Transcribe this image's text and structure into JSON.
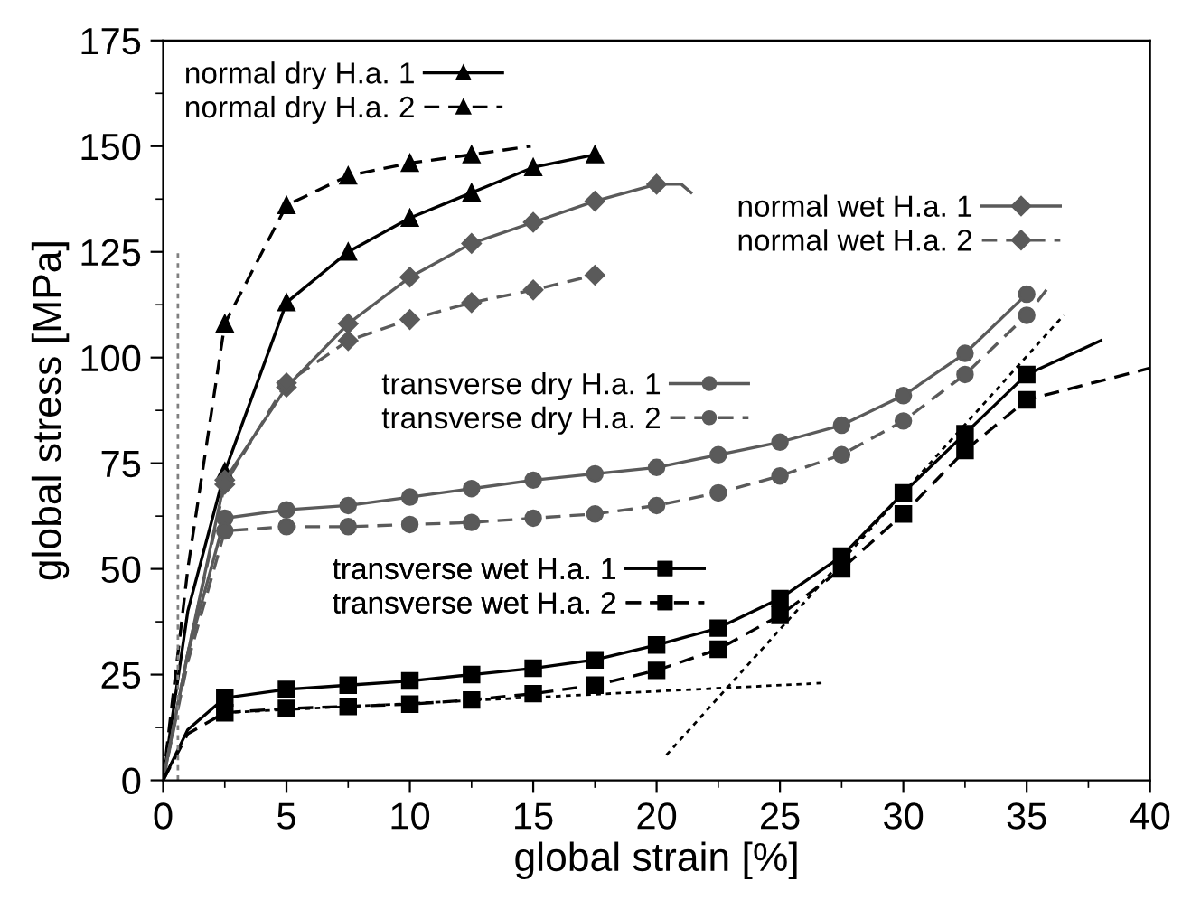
{
  "chart_data": {
    "type": "line",
    "xlabel": "global strain [%]",
    "ylabel": "global stress [MPa]",
    "xlim": [
      0,
      40
    ],
    "ylim": [
      0,
      175
    ],
    "xticks": [
      0,
      5,
      10,
      15,
      20,
      25,
      30,
      35,
      40
    ],
    "yticks": [
      0,
      25,
      50,
      75,
      100,
      125,
      150,
      175
    ],
    "grid": false,
    "legend": "top left",
    "series": [
      {
        "name": "normal dry H.a. 1",
        "color": "#000000",
        "marker": "triangle",
        "line_style": "solid",
        "x": [
          0,
          1,
          2.5,
          5,
          7.5,
          10,
          12.5,
          15,
          17.5
        ],
        "values": [
          0,
          40,
          73,
          113,
          125,
          133,
          139,
          145,
          148
        ]
      },
      {
        "name": "normal dry H.a. 2",
        "color": "#000000",
        "marker": "triangle",
        "line_style": "dashed",
        "x": [
          0,
          1,
          2.5,
          5,
          7.5,
          10,
          12.5,
          14.9
        ],
        "values": [
          0,
          50,
          108,
          136,
          143,
          146,
          148,
          150
        ]
      },
      {
        "name": "normal wet H.a. 1",
        "color": "#5a5a5a",
        "marker": "diamond",
        "line_style": "solid",
        "x": [
          0,
          1,
          2.5,
          5,
          7.5,
          10,
          12.5,
          15,
          17.5,
          20,
          21,
          21.4
        ],
        "values": [
          0,
          30,
          71,
          93,
          108,
          119,
          127,
          132,
          137,
          141,
          141,
          139
        ]
      },
      {
        "name": "normal wet H.a. 2",
        "color": "#5a5a5a",
        "marker": "diamond",
        "line_style": "dashed",
        "x": [
          0,
          1,
          2.5,
          5,
          7.5,
          10,
          12.5,
          15,
          17.5
        ],
        "values": [
          0,
          30,
          70,
          94,
          104,
          109,
          113,
          116,
          119.5
        ]
      },
      {
        "name": "transverse dry H.a. 1",
        "color": "#5a5a5a",
        "marker": "circle",
        "line_style": "solid",
        "x": [
          0,
          1,
          2.5,
          5,
          7.5,
          10,
          12.5,
          15,
          17.5,
          20,
          22.5,
          25,
          27.5,
          30,
          32.5,
          35
        ],
        "values": [
          0,
          30,
          62,
          64,
          65,
          67,
          69,
          71,
          72.5,
          74,
          77,
          80,
          84,
          91,
          101,
          115
        ]
      },
      {
        "name": "transverse dry H.a. 2",
        "color": "#5a5a5a",
        "marker": "circle",
        "line_style": "dashed",
        "x": [
          0,
          1,
          2.5,
          5,
          7.5,
          10,
          12.5,
          15,
          17.5,
          20,
          22.5,
          25,
          27.5,
          30,
          32.5,
          35,
          35.8
        ],
        "values": [
          0,
          28,
          59,
          60,
          60,
          60.5,
          61,
          62,
          63,
          65,
          68,
          72,
          77,
          85,
          96,
          110,
          116
        ]
      },
      {
        "name": "transverse wet H.a. 1",
        "color": "#000000",
        "marker": "square",
        "line_style": "solid",
        "x": [
          0,
          1,
          2.5,
          5,
          7.5,
          10,
          12.5,
          15,
          17.5,
          20,
          22.5,
          25,
          27.5,
          30,
          32.5,
          35,
          38
        ],
        "values": [
          0,
          12,
          19.5,
          21.5,
          22.5,
          23.5,
          25,
          26.5,
          28.5,
          32,
          36,
          43,
          53,
          68,
          82,
          96,
          104
        ]
      },
      {
        "name": "transverse wet H.a. 2",
        "color": "#000000",
        "marker": "square",
        "line_style": "dashed",
        "x": [
          0,
          1,
          2.5,
          5,
          7.5,
          10,
          12.5,
          15,
          17.5,
          20,
          22.5,
          25,
          27.5,
          30,
          32.5,
          35,
          40
        ],
        "values": [
          0,
          11,
          16,
          17,
          17.5,
          18,
          19,
          20.5,
          22.5,
          26,
          31,
          39,
          50,
          63,
          78,
          90,
          97.5
        ]
      },
      {
        "color": "#000000",
        "marker": "none",
        "line_style": "dotted",
        "x": [
          2.5,
          26.7
        ],
        "values": [
          16,
          23
        ]
      },
      {
        "color": "#000000",
        "marker": "none",
        "line_style": "dotted",
        "x": [
          20.4,
          36.5
        ],
        "values": [
          6,
          110
        ]
      },
      {
        "color": "#808080",
        "marker": "none",
        "line_style": "dotted",
        "x": [
          0.6,
          0.6
        ],
        "values": [
          0,
          125
        ]
      }
    ]
  }
}
